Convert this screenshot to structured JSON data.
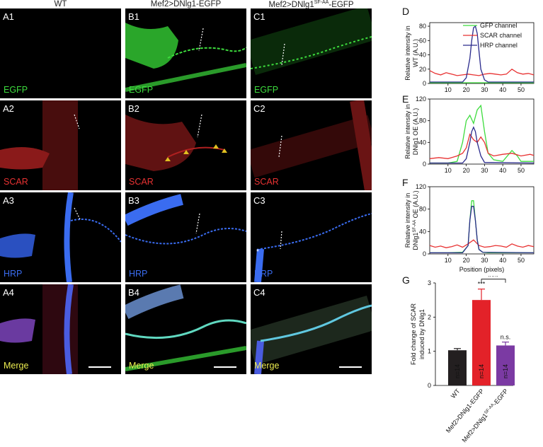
{
  "columns": [
    {
      "title": "WT"
    },
    {
      "title_main": "Mef2>DNlg1-EGFP"
    },
    {
      "title_main": "Mef2>DNlg1",
      "title_sup": "SF-AA",
      "title_suffix": "-EGFP"
    }
  ],
  "panels": {
    "A1": "A1",
    "B1": "B1",
    "C1": "C1",
    "A2": "A2",
    "B2": "B2",
    "C2": "C2",
    "A3": "A3",
    "B3": "B3",
    "C3": "C3",
    "A4": "A4",
    "B4": "B4",
    "C4": "C4"
  },
  "channels": {
    "egfp": "EGFP",
    "scar": "SCAR",
    "hrp": "HRP",
    "merge": "Merge"
  },
  "colors": {
    "egfp": "#3ddc3d",
    "scar": "#e83232",
    "hrp": "#3a6cf0",
    "merge": "#ecec50",
    "bar_wt": "#231f20",
    "bar_oe": "#e32229",
    "bar_sfaa": "#7b3aa3"
  },
  "chart_data": [
    {
      "panel": "D",
      "type": "line",
      "ylabel_line1": "Relative intensity in",
      "ylabel_line2": "WT (A.U.)",
      "xlim": [
        0,
        57
      ],
      "ylim": [
        0,
        85
      ],
      "yticks": [
        0,
        20,
        40,
        60,
        80
      ],
      "xticks": [
        10,
        20,
        30,
        40,
        50
      ],
      "legend": [
        "GFP channel",
        "SCAR channel",
        "HRP channel"
      ],
      "legend_position": "top-right",
      "series": [
        {
          "name": "GFP channel",
          "color": "#3ddc3d",
          "x": [
            0,
            10,
            20,
            30,
            40,
            50,
            57
          ],
          "y": [
            1,
            1,
            1,
            1,
            1,
            1,
            1
          ]
        },
        {
          "name": "SCAR channel",
          "color": "#e83232",
          "x": [
            0,
            3,
            6,
            9,
            12,
            15,
            18,
            21,
            24,
            27,
            30,
            33,
            36,
            39,
            42,
            45,
            48,
            51,
            54,
            57
          ],
          "y": [
            18,
            14,
            12,
            15,
            13,
            11,
            12,
            13,
            12,
            11,
            13,
            14,
            13,
            12,
            13,
            20,
            15,
            13,
            14,
            12
          ]
        },
        {
          "name": "HRP channel",
          "color": "#2a2a8c",
          "x": [
            0,
            18,
            20,
            22,
            23,
            24,
            25,
            26,
            27,
            28,
            30,
            32,
            57
          ],
          "y": [
            2,
            2,
            8,
            35,
            60,
            78,
            80,
            70,
            45,
            20,
            5,
            2,
            2
          ]
        }
      ]
    },
    {
      "panel": "E",
      "type": "line",
      "ylabel_line1": "Relative intensity in",
      "ylabel_line2": "DNlg1 OE (A.U.)",
      "xlim": [
        0,
        57
      ],
      "ylim": [
        0,
        120
      ],
      "yticks": [
        0,
        40,
        80,
        120
      ],
      "xticks": [
        10,
        20,
        30,
        40,
        50
      ],
      "series": [
        {
          "name": "GFP channel",
          "color": "#3ddc3d",
          "x": [
            0,
            10,
            15,
            18,
            20,
            22,
            24,
            26,
            28,
            30,
            32,
            35,
            40,
            45,
            48,
            50,
            57
          ],
          "y": [
            2,
            2,
            5,
            40,
            80,
            90,
            75,
            100,
            108,
            60,
            20,
            8,
            5,
            25,
            15,
            5,
            5
          ]
        },
        {
          "name": "SCAR channel",
          "color": "#e83232",
          "x": [
            0,
            5,
            10,
            15,
            18,
            20,
            22,
            24,
            26,
            28,
            30,
            32,
            35,
            40,
            45,
            50,
            55,
            57
          ],
          "y": [
            10,
            12,
            10,
            15,
            20,
            30,
            55,
            45,
            40,
            50,
            40,
            20,
            15,
            18,
            20,
            15,
            18,
            16
          ]
        },
        {
          "name": "HRP channel",
          "color": "#2a2a8c",
          "x": [
            0,
            18,
            20,
            22,
            23,
            24,
            25,
            26,
            28,
            30,
            57
          ],
          "y": [
            2,
            2,
            10,
            40,
            60,
            68,
            60,
            40,
            15,
            3,
            2
          ]
        }
      ]
    },
    {
      "panel": "F",
      "type": "line",
      "ylabel_line1": "Relative intensity in",
      "ylabel_line2_main": "DNlg1",
      "ylabel_line2_sup": "SF-AA",
      "ylabel_line2_suffix": " OE (A.U.)",
      "xlabel": "Position (pixels)",
      "xlim": [
        0,
        57
      ],
      "ylim": [
        0,
        120
      ],
      "yticks": [
        0,
        40,
        80,
        120
      ],
      "xticks": [
        10,
        20,
        30,
        40,
        50
      ],
      "series": [
        {
          "name": "GFP channel",
          "color": "#3ddc3d",
          "x": [
            0,
            10,
            18,
            21,
            22,
            23,
            24,
            25,
            26,
            27,
            29,
            32,
            57
          ],
          "y": [
            2,
            2,
            3,
            15,
            60,
            95,
            95,
            60,
            25,
            8,
            3,
            2,
            2
          ]
        },
        {
          "name": "SCAR channel",
          "color": "#e83232",
          "x": [
            0,
            3,
            6,
            9,
            12,
            15,
            18,
            21,
            24,
            27,
            30,
            33,
            36,
            39,
            42,
            45,
            48,
            51,
            54,
            57
          ],
          "y": [
            15,
            12,
            14,
            11,
            13,
            16,
            12,
            18,
            25,
            15,
            12,
            13,
            15,
            14,
            12,
            18,
            14,
            12,
            15,
            13
          ]
        },
        {
          "name": "HRP channel",
          "color": "#2a2a8c",
          "x": [
            0,
            18,
            21,
            22,
            23,
            24,
            25,
            26,
            27,
            29,
            57
          ],
          "y": [
            2,
            2,
            15,
            60,
            85,
            85,
            60,
            25,
            8,
            3,
            2
          ]
        }
      ]
    },
    {
      "panel": "G",
      "type": "bar",
      "ylabel_line1": "Fold change of SCAR",
      "ylabel_line2": "induced by DNlg1",
      "ylim": [
        0,
        3
      ],
      "yticks": [
        0,
        1,
        2,
        3
      ],
      "categories": [
        "WT",
        "Mef2>DNlg1-EGFP",
        "Mef2>DNlg1SF-AA-EGFP"
      ],
      "values": [
        1.03,
        2.5,
        1.17
      ],
      "errors": [
        0.05,
        0.32,
        0.1
      ],
      "n_labels": [
        "n=14",
        "n=14",
        "n=14"
      ],
      "annotations": [
        "",
        "***",
        "n.s."
      ],
      "bracket_label": "###"
    }
  ]
}
